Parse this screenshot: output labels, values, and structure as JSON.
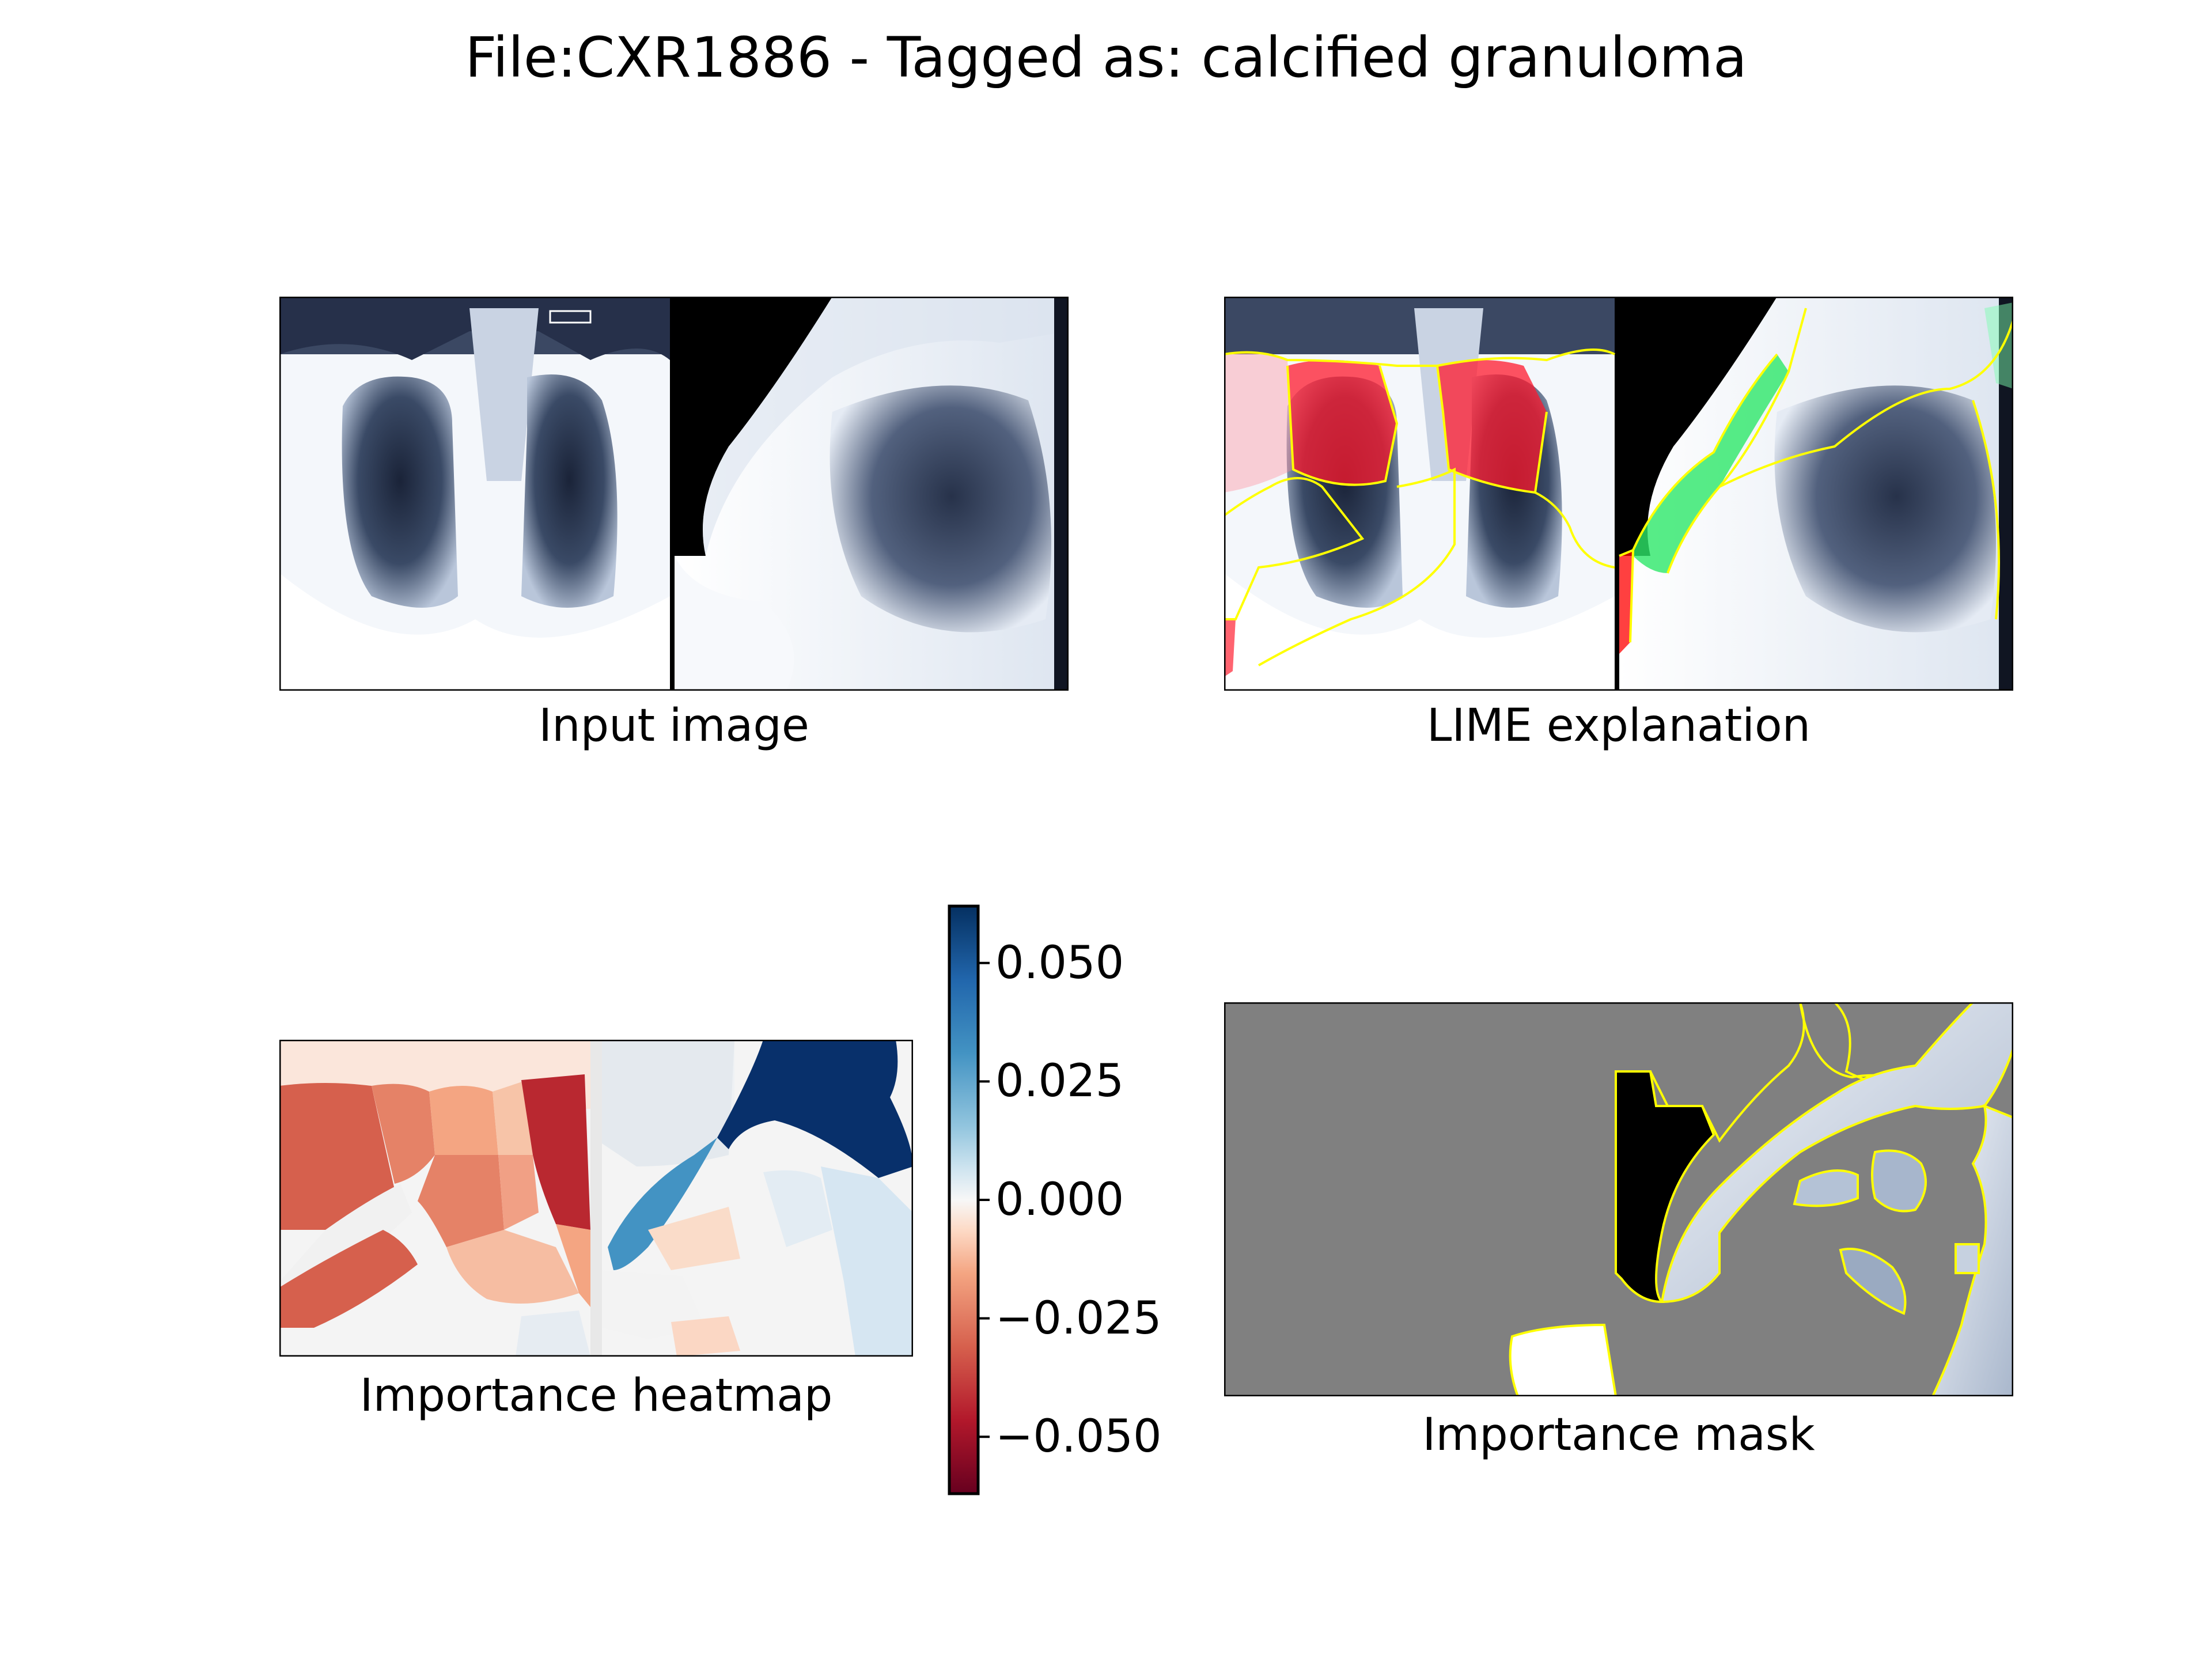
{
  "figure": {
    "title": "File:CXR1886 - Tagged as: calcified granuloma"
  },
  "panels": {
    "input": {
      "caption": "Input image"
    },
    "lime": {
      "caption": "LIME explanation"
    },
    "heatmap": {
      "caption": "Importance heatmap"
    },
    "mask": {
      "caption": "Importance mask"
    }
  },
  "colorbar": {
    "colormap": "RdBu",
    "range": [
      -0.062,
      0.062
    ],
    "ticks": [
      {
        "value": 0.05,
        "label": "0.050"
      },
      {
        "value": 0.025,
        "label": "0.025"
      },
      {
        "value": 0.0,
        "label": "0.000"
      },
      {
        "value": -0.025,
        "label": "−0.025"
      },
      {
        "value": -0.05,
        "label": "−0.050"
      }
    ]
  },
  "colors": {
    "negative": "#b2182b",
    "neutral": "#f7f7f7",
    "positive": "#08306b",
    "lime_negative_overlay": "#ff0000",
    "lime_positive_overlay": "#00ff00",
    "boundary": "#ffff00",
    "mask_background": "#808080"
  }
}
